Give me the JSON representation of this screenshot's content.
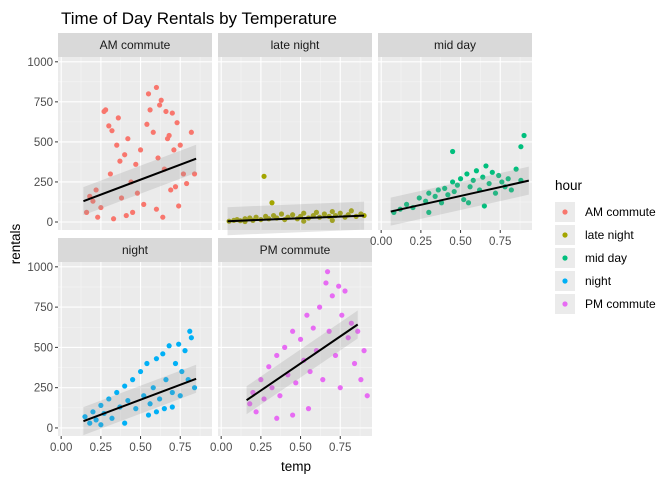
{
  "chart_data": {
    "type": "scatter",
    "title": "Time of Day Rentals by Temperature",
    "xlabel": "temp",
    "ylabel": "rentals",
    "xlim": [
      -0.02,
      0.95
    ],
    "ylim": [
      -50,
      1030
    ],
    "x_ticks": [
      0.0,
      0.25,
      0.5,
      0.75
    ],
    "x_tick_labels": [
      "0.00",
      "0.25",
      "0.50",
      "0.75"
    ],
    "y_ticks": [
      0,
      250,
      500,
      750,
      1000
    ],
    "y_tick_labels": [
      "0",
      "250",
      "500",
      "750",
      "1000"
    ],
    "grid": true,
    "legend": {
      "title": "hour",
      "position": "right"
    },
    "panels": [
      {
        "name": "AM commute",
        "color": "#F8766D",
        "x_range": [
          0.14,
          0.85
        ],
        "trend": {
          "x0": 0.14,
          "y0": 130,
          "x1": 0.85,
          "y1": 395
        },
        "points": [
          [
            0.18,
            160
          ],
          [
            0.22,
            200
          ],
          [
            0.25,
            90
          ],
          [
            0.27,
            690
          ],
          [
            0.28,
            700
          ],
          [
            0.3,
            600
          ],
          [
            0.31,
            300
          ],
          [
            0.32,
            570
          ],
          [
            0.33,
            20
          ],
          [
            0.35,
            480
          ],
          [
            0.36,
            650
          ],
          [
            0.37,
            380
          ],
          [
            0.38,
            150
          ],
          [
            0.4,
            420
          ],
          [
            0.41,
            40
          ],
          [
            0.42,
            520
          ],
          [
            0.44,
            250
          ],
          [
            0.45,
            60
          ],
          [
            0.47,
            360
          ],
          [
            0.48,
            180
          ],
          [
            0.5,
            450
          ],
          [
            0.52,
            110
          ],
          [
            0.54,
            610
          ],
          [
            0.56,
            700
          ],
          [
            0.58,
            560
          ],
          [
            0.6,
            80
          ],
          [
            0.61,
            400
          ],
          [
            0.62,
            730
          ],
          [
            0.63,
            760
          ],
          [
            0.64,
            30
          ],
          [
            0.65,
            330
          ],
          [
            0.66,
            690
          ],
          [
            0.67,
            520
          ],
          [
            0.68,
            540
          ],
          [
            0.69,
            200
          ],
          [
            0.7,
            680
          ],
          [
            0.71,
            450
          ],
          [
            0.72,
            220
          ],
          [
            0.73,
            620
          ],
          [
            0.74,
            100
          ],
          [
            0.75,
            480
          ],
          [
            0.77,
            300
          ],
          [
            0.79,
            240
          ],
          [
            0.82,
            560
          ],
          [
            0.84,
            300
          ],
          [
            0.55,
            800
          ],
          [
            0.6,
            840
          ],
          [
            0.16,
            60
          ],
          [
            0.2,
            130
          ],
          [
            0.23,
            30
          ]
        ]
      },
      {
        "name": "late night",
        "color": "#A3A500",
        "x_range": [
          0.04,
          0.9
        ],
        "trend": {
          "x0": 0.04,
          "y0": 5,
          "x1": 0.9,
          "y1": 40
        },
        "points": [
          [
            0.05,
            5
          ],
          [
            0.08,
            10
          ],
          [
            0.1,
            15
          ],
          [
            0.12,
            8
          ],
          [
            0.15,
            20
          ],
          [
            0.18,
            25
          ],
          [
            0.2,
            10
          ],
          [
            0.22,
            30
          ],
          [
            0.25,
            15
          ],
          [
            0.28,
            35
          ],
          [
            0.3,
            20
          ],
          [
            0.33,
            40
          ],
          [
            0.35,
            25
          ],
          [
            0.38,
            50
          ],
          [
            0.4,
            15
          ],
          [
            0.42,
            30
          ],
          [
            0.45,
            45
          ],
          [
            0.48,
            20
          ],
          [
            0.5,
            35
          ],
          [
            0.52,
            55
          ],
          [
            0.55,
            25
          ],
          [
            0.58,
            40
          ],
          [
            0.6,
            60
          ],
          [
            0.62,
            30
          ],
          [
            0.65,
            50
          ],
          [
            0.68,
            35
          ],
          [
            0.7,
            65
          ],
          [
            0.72,
            40
          ],
          [
            0.75,
            55
          ],
          [
            0.78,
            30
          ],
          [
            0.8,
            45
          ],
          [
            0.82,
            70
          ],
          [
            0.85,
            35
          ],
          [
            0.88,
            50
          ],
          [
            0.9,
            40
          ],
          [
            0.27,
            285
          ],
          [
            0.32,
            120
          ],
          [
            0.52,
            5
          ],
          [
            0.15,
            3
          ],
          [
            0.7,
            10
          ]
        ]
      },
      {
        "name": "mid day",
        "color": "#00BF7D",
        "x_range": [
          0.06,
          0.93
        ],
        "trend": {
          "x0": 0.06,
          "y0": 65,
          "x1": 0.93,
          "y1": 258
        },
        "points": [
          [
            0.08,
            60
          ],
          [
            0.12,
            80
          ],
          [
            0.16,
            110
          ],
          [
            0.2,
            90
          ],
          [
            0.24,
            150
          ],
          [
            0.28,
            130
          ],
          [
            0.3,
            180
          ],
          [
            0.34,
            160
          ],
          [
            0.36,
            200
          ],
          [
            0.38,
            120
          ],
          [
            0.4,
            210
          ],
          [
            0.42,
            170
          ],
          [
            0.45,
            250
          ],
          [
            0.46,
            190
          ],
          [
            0.48,
            230
          ],
          [
            0.5,
            270
          ],
          [
            0.52,
            140
          ],
          [
            0.54,
            300
          ],
          [
            0.56,
            220
          ],
          [
            0.58,
            260
          ],
          [
            0.6,
            320
          ],
          [
            0.62,
            200
          ],
          [
            0.64,
            280
          ],
          [
            0.66,
            350
          ],
          [
            0.68,
            240
          ],
          [
            0.7,
            310
          ],
          [
            0.72,
            180
          ],
          [
            0.74,
            290
          ],
          [
            0.76,
            250
          ],
          [
            0.78,
            220
          ],
          [
            0.8,
            270
          ],
          [
            0.82,
            200
          ],
          [
            0.85,
            330
          ],
          [
            0.88,
            260
          ],
          [
            0.9,
            540
          ],
          [
            0.88,
            470
          ],
          [
            0.45,
            440
          ],
          [
            0.3,
            60
          ],
          [
            0.55,
            120
          ],
          [
            0.65,
            100
          ]
        ]
      },
      {
        "name": "night",
        "color": "#00B0F6",
        "x_range": [
          0.14,
          0.85
        ],
        "trend": {
          "x0": 0.14,
          "y0": 42,
          "x1": 0.85,
          "y1": 305
        },
        "points": [
          [
            0.15,
            70
          ],
          [
            0.18,
            30
          ],
          [
            0.2,
            100
          ],
          [
            0.22,
            50
          ],
          [
            0.25,
            140
          ],
          [
            0.27,
            90
          ],
          [
            0.3,
            180
          ],
          [
            0.32,
            60
          ],
          [
            0.35,
            220
          ],
          [
            0.37,
            130
          ],
          [
            0.4,
            260
          ],
          [
            0.42,
            170
          ],
          [
            0.45,
            300
          ],
          [
            0.47,
            120
          ],
          [
            0.5,
            350
          ],
          [
            0.52,
            200
          ],
          [
            0.54,
            400
          ],
          [
            0.56,
            150
          ],
          [
            0.58,
            250
          ],
          [
            0.6,
            430
          ],
          [
            0.62,
            180
          ],
          [
            0.64,
            460
          ],
          [
            0.66,
            300
          ],
          [
            0.68,
            510
          ],
          [
            0.7,
            220
          ],
          [
            0.72,
            400
          ],
          [
            0.74,
            520
          ],
          [
            0.76,
            350
          ],
          [
            0.78,
            480
          ],
          [
            0.8,
            300
          ],
          [
            0.82,
            560
          ],
          [
            0.84,
            250
          ],
          [
            0.81,
            600
          ],
          [
            0.7,
            130
          ],
          [
            0.6,
            100
          ],
          [
            0.4,
            30
          ],
          [
            0.25,
            20
          ],
          [
            0.55,
            80
          ],
          [
            0.65,
            120
          ],
          [
            0.75,
            200
          ]
        ]
      },
      {
        "name": "PM commute",
        "color": "#E76BF3",
        "x_range": [
          0.16,
          0.92
        ],
        "trend": {
          "x0": 0.16,
          "y0": 172,
          "x1": 0.86,
          "y1": 642
        },
        "points": [
          [
            0.18,
            150
          ],
          [
            0.2,
            220
          ],
          [
            0.22,
            100
          ],
          [
            0.25,
            300
          ],
          [
            0.27,
            180
          ],
          [
            0.3,
            380
          ],
          [
            0.32,
            250
          ],
          [
            0.35,
            450
          ],
          [
            0.37,
            200
          ],
          [
            0.4,
            500
          ],
          [
            0.42,
            330
          ],
          [
            0.45,
            600
          ],
          [
            0.47,
            280
          ],
          [
            0.5,
            550
          ],
          [
            0.52,
            420
          ],
          [
            0.54,
            700
          ],
          [
            0.56,
            350
          ],
          [
            0.58,
            620
          ],
          [
            0.6,
            480
          ],
          [
            0.62,
            750
          ],
          [
            0.64,
            300
          ],
          [
            0.66,
            900
          ],
          [
            0.68,
            600
          ],
          [
            0.7,
            820
          ],
          [
            0.72,
            450
          ],
          [
            0.74,
            880
          ],
          [
            0.76,
            700
          ],
          [
            0.78,
            850
          ],
          [
            0.8,
            560
          ],
          [
            0.82,
            650
          ],
          [
            0.84,
            400
          ],
          [
            0.86,
            600
          ],
          [
            0.88,
            300
          ],
          [
            0.9,
            480
          ],
          [
            0.92,
            200
          ],
          [
            0.67,
            970
          ],
          [
            0.55,
            120
          ],
          [
            0.45,
            80
          ],
          [
            0.35,
            60
          ],
          [
            0.75,
            250
          ]
        ]
      }
    ]
  }
}
